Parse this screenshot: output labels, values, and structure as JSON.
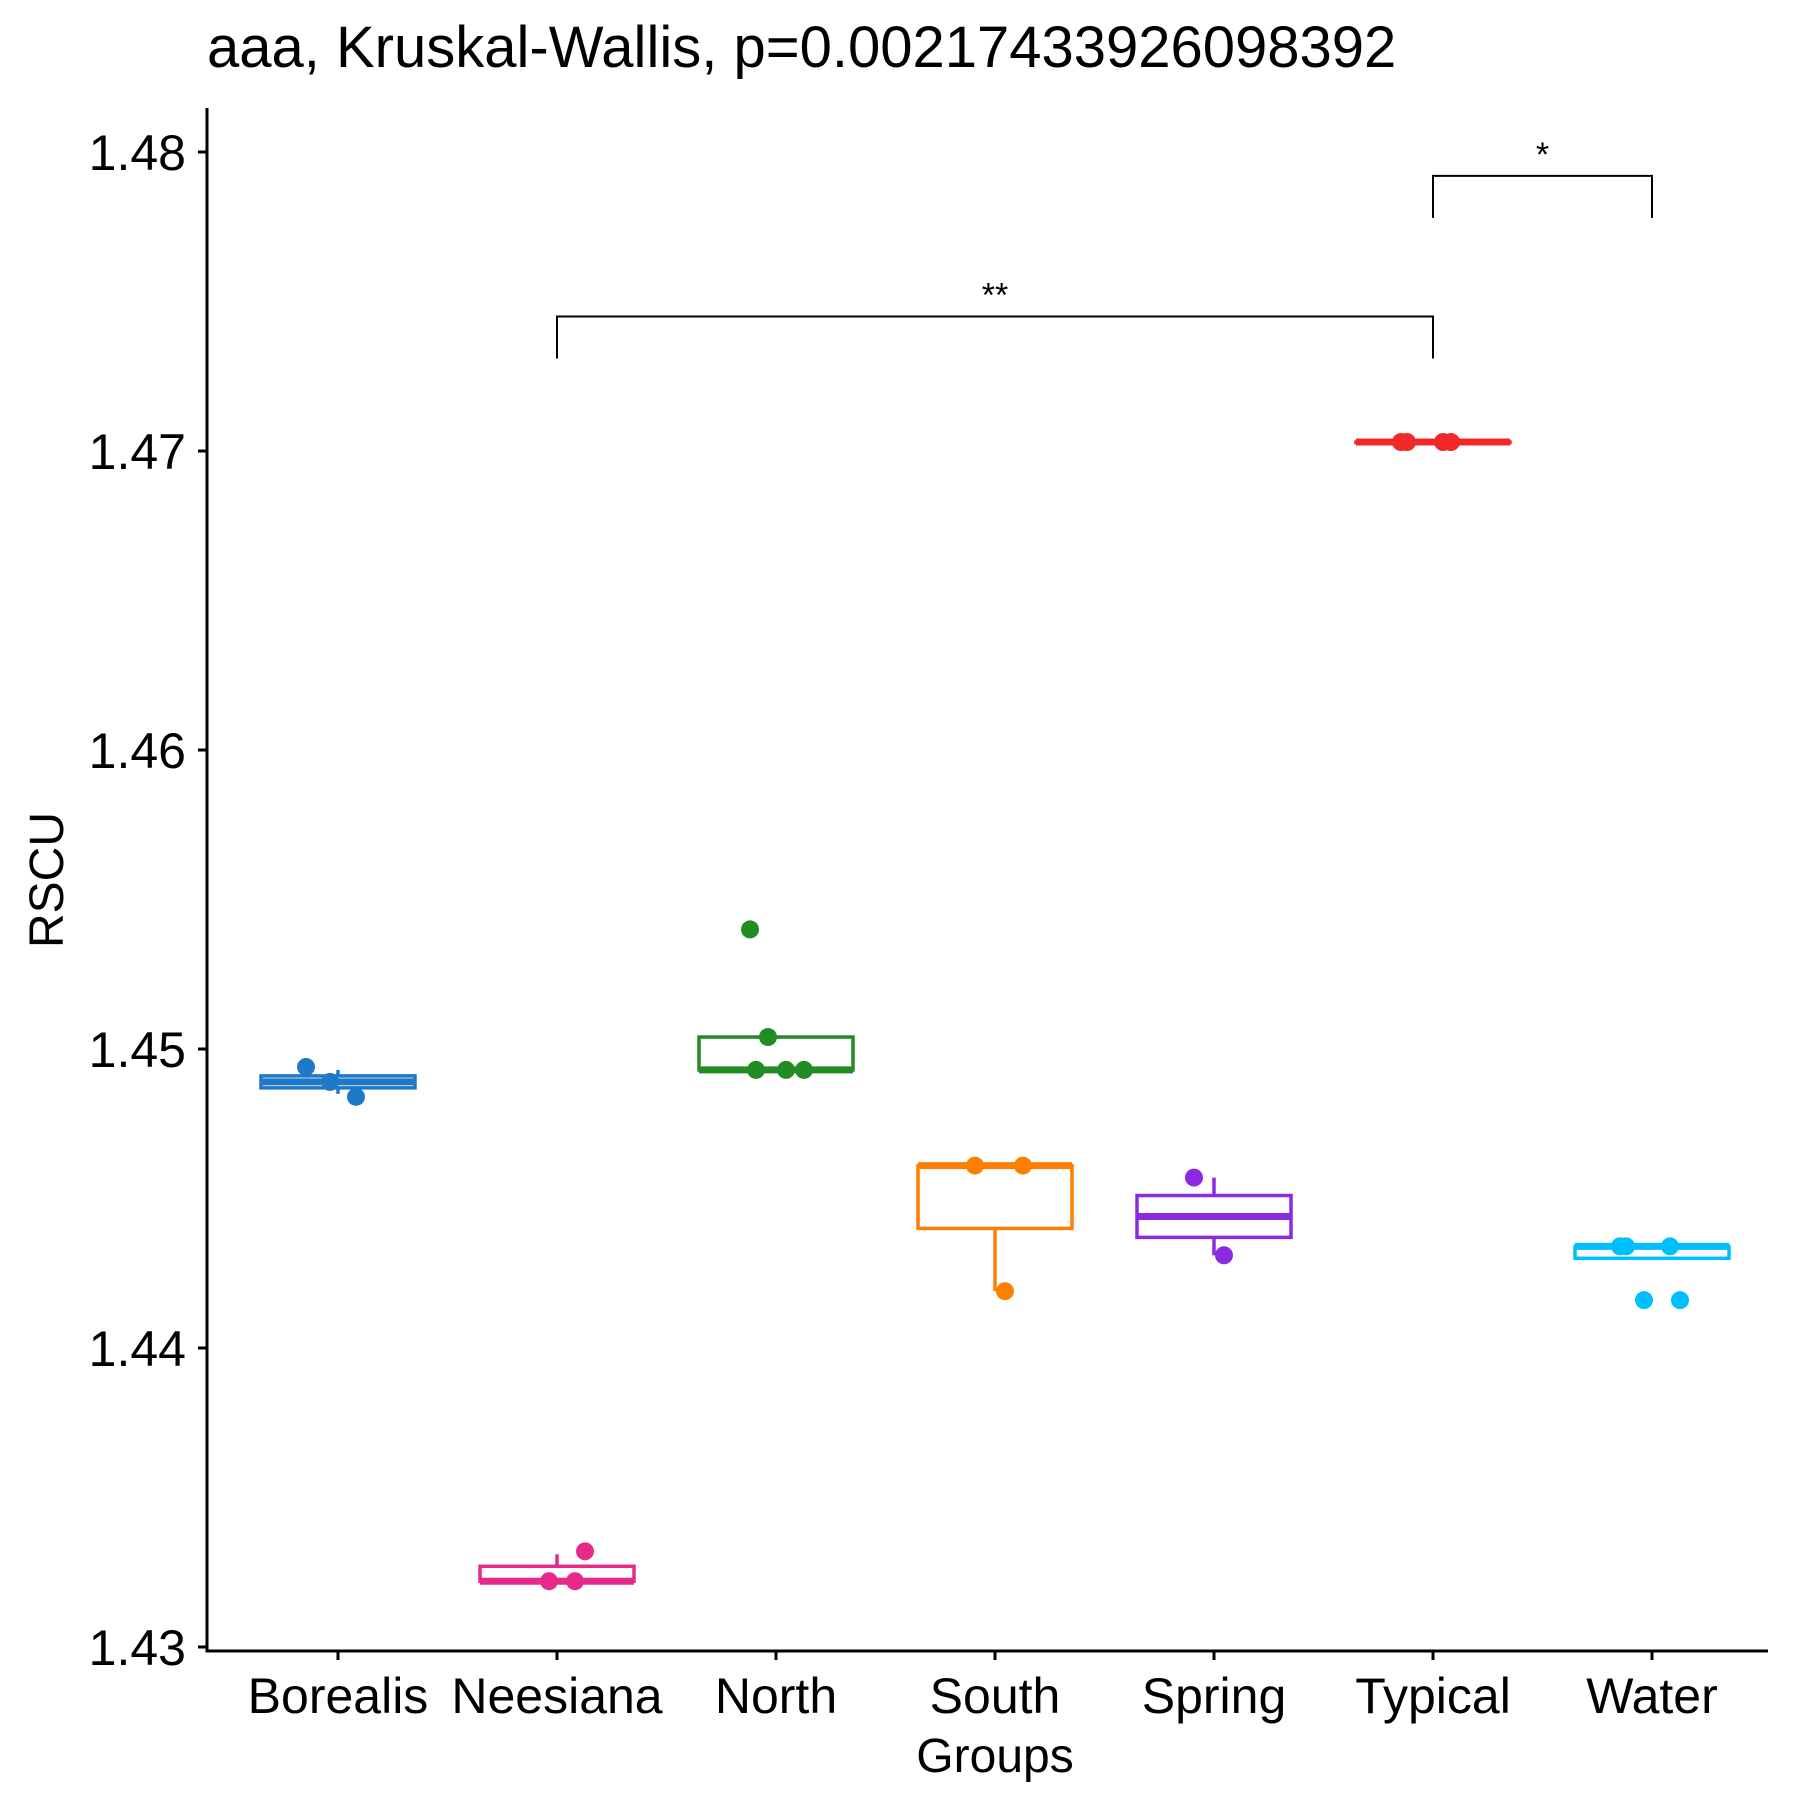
{
  "chart_data": {
    "type": "box",
    "title": "aaa, Kruskal-Wallis, p=0.00217433926098392",
    "xlabel": "Groups",
    "ylabel": "RSCU",
    "ylim": [
      1.4285,
      1.4815
    ],
    "yticks": [
      1.43,
      1.44,
      1.45,
      1.46,
      1.47,
      1.48
    ],
    "ytick_labels": [
      "1.43",
      "1.44",
      "1.45",
      "1.46",
      "1.47",
      "1.48"
    ],
    "categories": [
      "Borealis",
      "Neesiana",
      "North",
      "South",
      "Spring",
      "Typical",
      "Water"
    ],
    "grid": false,
    "legend": "none",
    "boxes": [
      {
        "group": "Borealis",
        "color": "#1F78C8",
        "min": 1.4485,
        "q1": 1.4487,
        "median": 1.4489,
        "q3": 1.4491,
        "max": 1.4493,
        "points": [
          1.4494,
          1.4484,
          1.4489
        ]
      },
      {
        "group": "Neesiana",
        "color": "#E7298A",
        "min": 1.4322,
        "q1": 1.4322,
        "median": 1.4322,
        "q3": 1.4327,
        "max": 1.4331,
        "points": [
          1.4322,
          1.4322,
          1.4332
        ]
      },
      {
        "group": "North",
        "color": "#228B22",
        "min": 1.4493,
        "q1": 1.4493,
        "median": 1.4493,
        "q3": 1.4504,
        "max": 1.4504,
        "points": [
          1.4504,
          1.4493,
          1.4493,
          1.4493,
          1.454
        ]
      },
      {
        "group": "South",
        "color": "#FF7F00",
        "min": 1.4419,
        "q1": 1.444,
        "median": 1.4461,
        "q3": 1.4461,
        "max": 1.4461,
        "points": [
          1.4461,
          1.4461,
          1.4419
        ]
      },
      {
        "group": "Spring",
        "color": "#8A2BE2",
        "min": 1.4431,
        "q1": 1.4437,
        "median": 1.4444,
        "q3": 1.4451,
        "max": 1.4457,
        "points": [
          1.4457,
          1.4431
        ]
      },
      {
        "group": "Typical",
        "color": "#F02828",
        "min": 1.4703,
        "q1": 1.4703,
        "median": 1.4703,
        "q3": 1.4703,
        "max": 1.4703,
        "points": [
          1.4703,
          1.4703,
          1.4703,
          1.4703
        ]
      },
      {
        "group": "Water",
        "color": "#00BFFF",
        "min": 1.443,
        "q1": 1.443,
        "median": 1.4434,
        "q3": 1.4434,
        "max": 1.4434,
        "points": [
          1.4434,
          1.4434,
          1.4434,
          1.4416,
          1.4416
        ]
      }
    ],
    "comparisons": [
      {
        "from": "Neesiana",
        "to": "Typical",
        "label": "**",
        "y": 1.4745
      },
      {
        "from": "Typical",
        "to": "Water",
        "label": "*",
        "y": 1.4792
      }
    ]
  }
}
